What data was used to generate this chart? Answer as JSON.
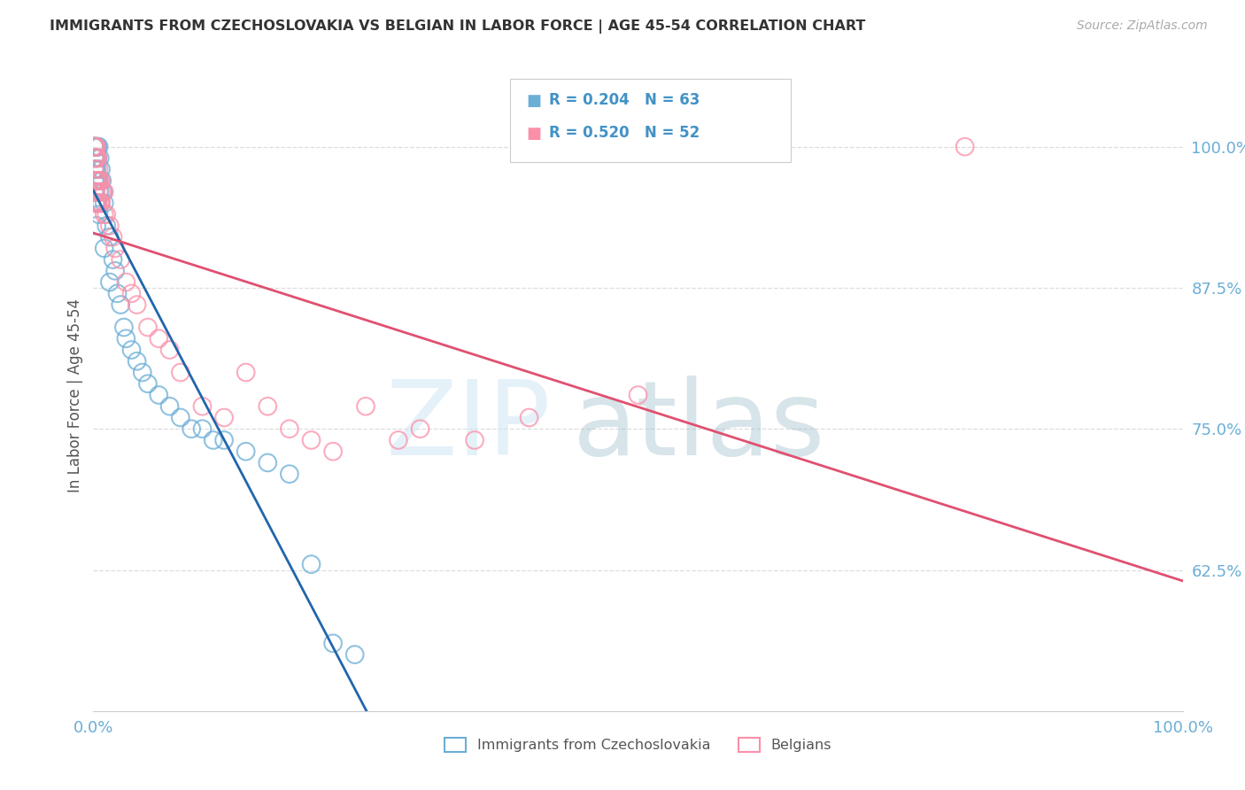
{
  "title": "IMMIGRANTS FROM CZECHOSLOVAKIA VS BELGIAN IN LABOR FORCE | AGE 45-54 CORRELATION CHART",
  "source": "Source: ZipAtlas.com",
  "ylabel": "In Labor Force | Age 45-54",
  "ytick_labels": [
    "62.5%",
    "75.0%",
    "87.5%",
    "100.0%"
  ],
  "ytick_values": [
    0.625,
    0.75,
    0.875,
    1.0
  ],
  "legend_label1": "Immigrants from Czechoslovakia",
  "legend_label2": "Belgians",
  "r1": 0.204,
  "n1": 63,
  "r2": 0.52,
  "n2": 52,
  "color_blue": "#6baed6",
  "color_pink": "#fc8fa8",
  "color_blue_line": "#2166ac",
  "color_pink_line": "#e05070",
  "color_title": "#333333",
  "color_source": "#aaaaaa",
  "color_r_value": "#4292c6",
  "color_axis": "#6baed6",
  "blue_x": [
    0.001,
    0.001,
    0.001,
    0.001,
    0.001,
    0.001,
    0.001,
    0.001,
    0.002,
    0.002,
    0.002,
    0.002,
    0.002,
    0.002,
    0.002,
    0.002,
    0.003,
    0.003,
    0.003,
    0.003,
    0.003,
    0.003,
    0.004,
    0.004,
    0.004,
    0.004,
    0.005,
    0.005,
    0.005,
    0.006,
    0.006,
    0.007,
    0.007,
    0.008,
    0.009,
    0.01,
    0.01,
    0.012,
    0.015,
    0.015,
    0.018,
    0.02,
    0.022,
    0.025,
    0.028,
    0.03,
    0.035,
    0.04,
    0.045,
    0.05,
    0.06,
    0.07,
    0.08,
    0.09,
    0.1,
    0.11,
    0.12,
    0.14,
    0.16,
    0.18,
    0.2,
    0.22,
    0.24
  ],
  "blue_y": [
    1.0,
    1.0,
    1.0,
    1.0,
    0.99,
    0.98,
    0.97,
    0.96,
    1.0,
    1.0,
    1.0,
    0.99,
    0.98,
    0.97,
    0.96,
    0.95,
    1.0,
    0.99,
    0.98,
    0.97,
    0.95,
    0.93,
    1.0,
    0.99,
    0.97,
    0.95,
    1.0,
    0.97,
    0.94,
    0.99,
    0.96,
    0.98,
    0.95,
    0.97,
    0.96,
    0.95,
    0.91,
    0.93,
    0.92,
    0.88,
    0.9,
    0.89,
    0.87,
    0.86,
    0.84,
    0.83,
    0.82,
    0.81,
    0.8,
    0.79,
    0.78,
    0.77,
    0.76,
    0.75,
    0.75,
    0.74,
    0.74,
    0.73,
    0.72,
    0.71,
    0.63,
    0.56,
    0.55
  ],
  "pink_x": [
    0.001,
    0.001,
    0.001,
    0.001,
    0.001,
    0.002,
    0.002,
    0.002,
    0.002,
    0.002,
    0.003,
    0.003,
    0.003,
    0.003,
    0.004,
    0.004,
    0.004,
    0.005,
    0.005,
    0.006,
    0.006,
    0.007,
    0.007,
    0.008,
    0.01,
    0.01,
    0.012,
    0.015,
    0.018,
    0.02,
    0.025,
    0.03,
    0.035,
    0.04,
    0.05,
    0.06,
    0.07,
    0.08,
    0.1,
    0.12,
    0.14,
    0.16,
    0.18,
    0.2,
    0.22,
    0.25,
    0.28,
    0.3,
    0.35,
    0.4,
    0.5,
    0.8
  ],
  "pink_y": [
    1.0,
    1.0,
    0.99,
    0.98,
    0.96,
    1.0,
    0.99,
    0.97,
    0.96,
    0.95,
    1.0,
    0.99,
    0.97,
    0.95,
    0.99,
    0.97,
    0.95,
    0.98,
    0.96,
    0.97,
    0.95,
    0.97,
    0.95,
    0.96,
    0.96,
    0.94,
    0.94,
    0.93,
    0.92,
    0.91,
    0.9,
    0.88,
    0.87,
    0.86,
    0.84,
    0.83,
    0.82,
    0.8,
    0.77,
    0.76,
    0.8,
    0.77,
    0.75,
    0.74,
    0.73,
    0.77,
    0.74,
    0.75,
    0.74,
    0.76,
    0.78,
    1.0
  ]
}
